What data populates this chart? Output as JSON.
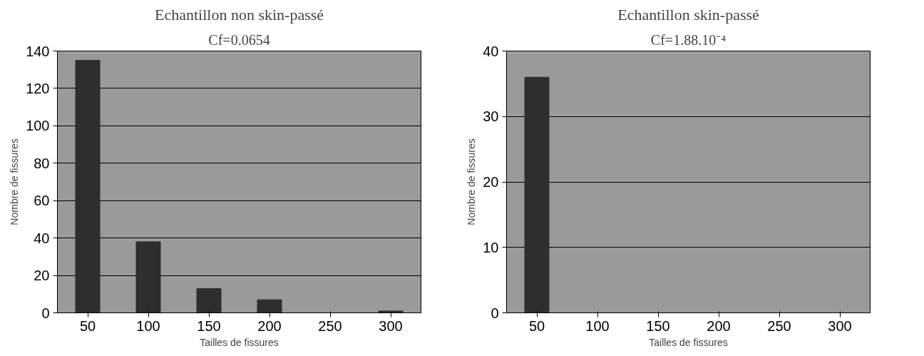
{
  "chart_data": [
    {
      "type": "bar",
      "title": "Echantillon non skin-passé",
      "annotations": [
        "Cf=0.0654"
      ],
      "xlabel": "Tailles de fissures",
      "ylabel": "Nombre de fissures",
      "categories": [
        "50",
        "100",
        "150",
        "200",
        "250",
        "300"
      ],
      "values": [
        135,
        38,
        13,
        7,
        0,
        1
      ],
      "color": "#2e2e2e",
      "ylim": [
        0,
        140
      ],
      "yticks": [
        0,
        20,
        40,
        60,
        80,
        100,
        120,
        140
      ],
      "grid": "y"
    },
    {
      "type": "bar",
      "title": "Echantillon skin-passé",
      "annotations": [
        "Cf=1.88.10⁻⁴"
      ],
      "xlabel": "Tailles de fissures",
      "ylabel": "Nombre de fissures",
      "categories": [
        "50",
        "100",
        "150",
        "200",
        "250",
        "300"
      ],
      "values": [
        36,
        0,
        0,
        0,
        0,
        0
      ],
      "color": "#2e2e2e",
      "ylim": [
        0,
        40
      ],
      "yticks": [
        0,
        10,
        20,
        30,
        40
      ],
      "grid": "y"
    }
  ]
}
